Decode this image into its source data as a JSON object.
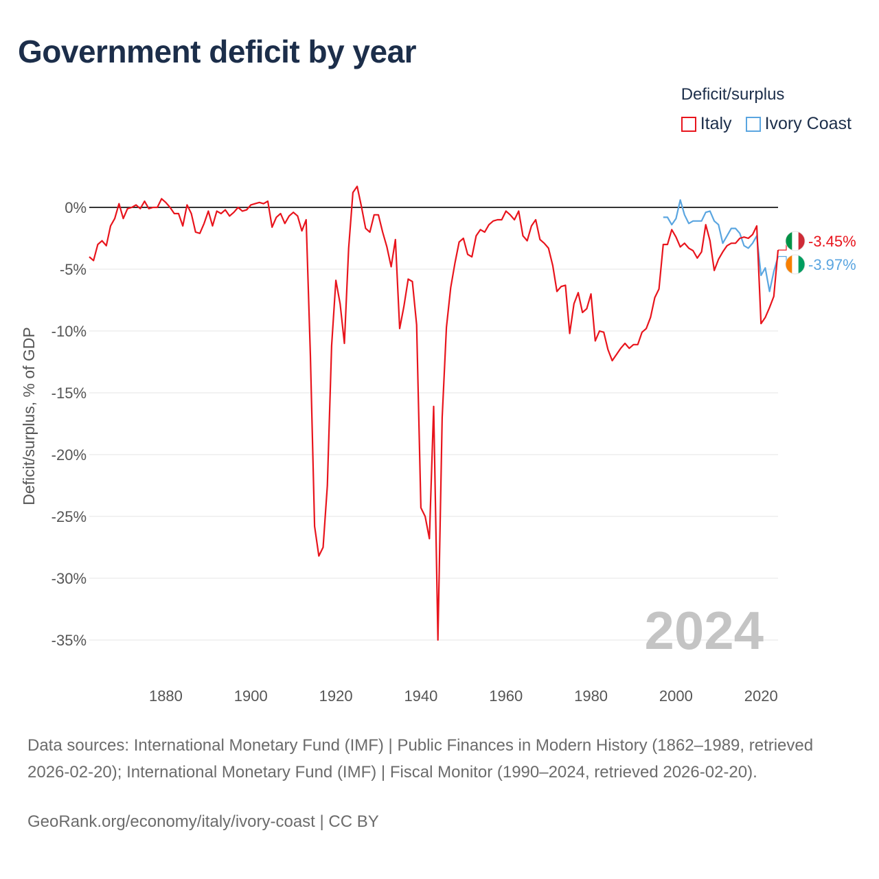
{
  "title": "Government deficit by year",
  "legend": {
    "title": "Deficit/surplus",
    "items": [
      {
        "label": "Italy",
        "color": "#e8141c"
      },
      {
        "label": "Ivory Coast",
        "color": "#5aa5e0"
      }
    ]
  },
  "year_watermark": "2024",
  "source_text": "Data sources: International Monetary Fund (IMF) | Public Finances in Modern History (1862–1989, retrieved 2026-02-20); International Monetary Fund (IMF) | Fiscal Monitor (1990–2024, retrieved 2026-02-20).",
  "credit_text": "GeoRank.org/economy/italy/ivory-coast | CC BY",
  "chart_data": {
    "type": "line",
    "title": "Government deficit by year",
    "xlabel": "",
    "ylabel": "Deficit/surplus, % of GDP",
    "xlim": [
      1862,
      2024
    ],
    "ylim": [
      -35,
      0
    ],
    "x_ticks": [
      1880,
      1900,
      1920,
      1940,
      1960,
      1980,
      2000,
      2020
    ],
    "y_ticks": [
      0,
      -5,
      -10,
      -15,
      -20,
      -25,
      -30,
      -35
    ],
    "y_tick_labels": [
      "0%",
      "-5%",
      "-10%",
      "-15%",
      "-20%",
      "-25%",
      "-30%",
      "-35%"
    ],
    "series": [
      {
        "name": "Italy",
        "color": "#e8141c",
        "end_label": "-3.45%",
        "points": [
          [
            1862,
            -4
          ],
          [
            1863,
            -4.3
          ],
          [
            1864,
            -3
          ],
          [
            1865,
            -2.7
          ],
          [
            1866,
            -3.1
          ],
          [
            1867,
            -1.5
          ],
          [
            1868,
            -0.9
          ],
          [
            1869,
            0.3
          ],
          [
            1870,
            -0.9
          ],
          [
            1871,
            -0.1
          ],
          [
            1872,
            0
          ],
          [
            1873,
            0.2
          ],
          [
            1874,
            -0.1
          ],
          [
            1875,
            0.5
          ],
          [
            1876,
            -0.1
          ],
          [
            1877,
            0
          ],
          [
            1878,
            0
          ],
          [
            1879,
            0.7
          ],
          [
            1880,
            0.4
          ],
          [
            1881,
            0
          ],
          [
            1882,
            -0.5
          ],
          [
            1883,
            -0.5
          ],
          [
            1884,
            -1.5
          ],
          [
            1885,
            0.2
          ],
          [
            1886,
            -0.5
          ],
          [
            1887,
            -2
          ],
          [
            1888,
            -2.1
          ],
          [
            1889,
            -1.3
          ],
          [
            1890,
            -0.3
          ],
          [
            1891,
            -1.5
          ],
          [
            1892,
            -0.3
          ],
          [
            1893,
            -0.5
          ],
          [
            1894,
            -0.2
          ],
          [
            1895,
            -0.7
          ],
          [
            1896,
            -0.4
          ],
          [
            1897,
            0
          ],
          [
            1898,
            -0.3
          ],
          [
            1899,
            -0.2
          ],
          [
            1900,
            0.2
          ],
          [
            1901,
            0.3
          ],
          [
            1902,
            0.4
          ],
          [
            1903,
            0.3
          ],
          [
            1904,
            0.5
          ],
          [
            1905,
            -1.6
          ],
          [
            1906,
            -0.8
          ],
          [
            1907,
            -0.5
          ],
          [
            1908,
            -1.3
          ],
          [
            1909,
            -0.7
          ],
          [
            1910,
            -0.4
          ],
          [
            1911,
            -0.7
          ],
          [
            1912,
            -1.9
          ],
          [
            1913,
            -1
          ],
          [
            1914,
            -12
          ],
          [
            1915,
            -25.8
          ],
          [
            1916,
            -28.2
          ],
          [
            1917,
            -27.5
          ],
          [
            1918,
            -22.5
          ],
          [
            1919,
            -11.2
          ],
          [
            1920,
            -5.9
          ],
          [
            1921,
            -7.8
          ],
          [
            1922,
            -11
          ],
          [
            1923,
            -3.3
          ],
          [
            1924,
            1.2
          ],
          [
            1925,
            1.7
          ],
          [
            1926,
            0.1
          ],
          [
            1927,
            -1.7
          ],
          [
            1928,
            -2
          ],
          [
            1929,
            -0.6
          ],
          [
            1930,
            -0.6
          ],
          [
            1931,
            -2
          ],
          [
            1932,
            -3.2
          ],
          [
            1933,
            -4.8
          ],
          [
            1934,
            -2.6
          ],
          [
            1935,
            -9.8
          ],
          [
            1936,
            -8
          ],
          [
            1937,
            -5.8
          ],
          [
            1938,
            -6
          ],
          [
            1939,
            -9.5
          ],
          [
            1940,
            -24.3
          ],
          [
            1941,
            -25
          ],
          [
            1942,
            -26.8
          ],
          [
            1943,
            -16.1
          ],
          [
            1944,
            -35
          ],
          [
            1945,
            -17
          ],
          [
            1946,
            -9.7
          ],
          [
            1947,
            -6.5
          ],
          [
            1948,
            -4.5
          ],
          [
            1949,
            -2.8
          ],
          [
            1950,
            -2.5
          ],
          [
            1951,
            -3.8
          ],
          [
            1952,
            -4
          ],
          [
            1953,
            -2.3
          ],
          [
            1954,
            -1.8
          ],
          [
            1955,
            -2
          ],
          [
            1956,
            -1.4
          ],
          [
            1957,
            -1.1
          ],
          [
            1958,
            -1
          ],
          [
            1959,
            -1
          ],
          [
            1960,
            -0.3
          ],
          [
            1961,
            -0.6
          ],
          [
            1962,
            -1
          ],
          [
            1963,
            -0.3
          ],
          [
            1964,
            -2.3
          ],
          [
            1965,
            -2.7
          ],
          [
            1966,
            -1.5
          ],
          [
            1967,
            -1
          ],
          [
            1968,
            -2.6
          ],
          [
            1969,
            -2.9
          ],
          [
            1970,
            -3.3
          ],
          [
            1971,
            -4.7
          ],
          [
            1972,
            -6.8
          ],
          [
            1973,
            -6.4
          ],
          [
            1974,
            -6.3
          ],
          [
            1975,
            -10.2
          ],
          [
            1976,
            -7.8
          ],
          [
            1977,
            -6.9
          ],
          [
            1978,
            -8.5
          ],
          [
            1979,
            -8.2
          ],
          [
            1980,
            -7
          ],
          [
            1981,
            -10.8
          ],
          [
            1982,
            -10
          ],
          [
            1983,
            -10.1
          ],
          [
            1984,
            -11.5
          ],
          [
            1985,
            -12.4
          ],
          [
            1986,
            -11.9
          ],
          [
            1987,
            -11.4
          ],
          [
            1988,
            -11
          ],
          [
            1989,
            -11.4
          ],
          [
            1990,
            -11.1
          ],
          [
            1991,
            -11.1
          ],
          [
            1992,
            -10.1
          ],
          [
            1993,
            -9.8
          ],
          [
            1994,
            -8.9
          ],
          [
            1995,
            -7.3
          ],
          [
            1996,
            -6.6
          ],
          [
            1997,
            -3
          ],
          [
            1998,
            -3
          ],
          [
            1999,
            -1.8
          ],
          [
            2000,
            -2.4
          ],
          [
            2001,
            -3.2
          ],
          [
            2002,
            -2.9
          ],
          [
            2003,
            -3.3
          ],
          [
            2004,
            -3.5
          ],
          [
            2005,
            -4.1
          ],
          [
            2006,
            -3.6
          ],
          [
            2007,
            -1.4
          ],
          [
            2008,
            -2.7
          ],
          [
            2009,
            -5.1
          ],
          [
            2010,
            -4.2
          ],
          [
            2011,
            -3.6
          ],
          [
            2012,
            -3.1
          ],
          [
            2013,
            -2.9
          ],
          [
            2014,
            -2.9
          ],
          [
            2015,
            -2.5
          ],
          [
            2016,
            -2.4
          ],
          [
            2017,
            -2.5
          ],
          [
            2018,
            -2.2
          ],
          [
            2019,
            -1.5
          ],
          [
            2020,
            -9.4
          ],
          [
            2021,
            -8.9
          ],
          [
            2022,
            -8.1
          ],
          [
            2023,
            -7.2
          ],
          [
            2024,
            -3.45
          ]
        ]
      },
      {
        "name": "Ivory Coast",
        "color": "#5aa5e0",
        "end_label": "-3.97%",
        "points": [
          [
            1997,
            -0.8
          ],
          [
            1998,
            -0.8
          ],
          [
            1999,
            -1.4
          ],
          [
            2000,
            -0.9
          ],
          [
            2001,
            0.6
          ],
          [
            2002,
            -0.6
          ],
          [
            2003,
            -1.3
          ],
          [
            2004,
            -1.1
          ],
          [
            2005,
            -1.1
          ],
          [
            2006,
            -1.1
          ],
          [
            2007,
            -0.4
          ],
          [
            2008,
            -0.3
          ],
          [
            2009,
            -1.1
          ],
          [
            2010,
            -1.4
          ],
          [
            2011,
            -2.9
          ],
          [
            2012,
            -2.3
          ],
          [
            2013,
            -1.7
          ],
          [
            2014,
            -1.7
          ],
          [
            2015,
            -2.1
          ],
          [
            2016,
            -3.1
          ],
          [
            2017,
            -3.3
          ],
          [
            2018,
            -2.9
          ],
          [
            2019,
            -2.3
          ],
          [
            2020,
            -5.5
          ],
          [
            2021,
            -4.9
          ],
          [
            2022,
            -6.8
          ],
          [
            2023,
            -5.2
          ],
          [
            2024,
            -3.97
          ]
        ]
      }
    ]
  }
}
